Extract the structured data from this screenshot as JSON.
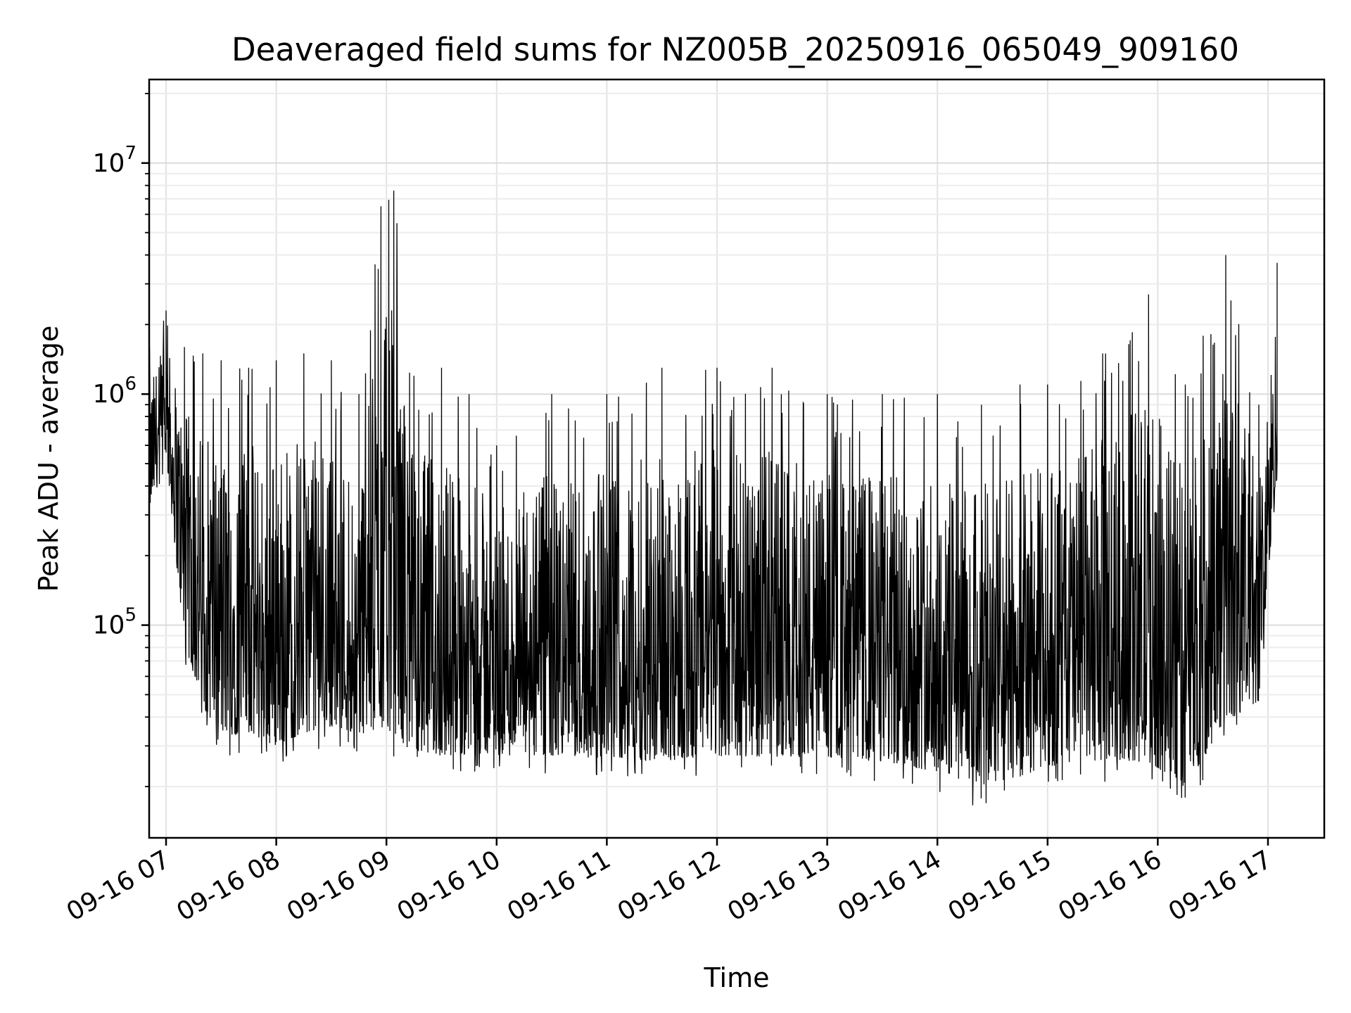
{
  "chart_data": {
    "type": "line",
    "title": "Deaveraged field sums for NZ005B_20250916_065049_909160",
    "xlabel": "Time",
    "ylabel": "Peak ADU - average",
    "yscale": "log",
    "ylim": [
      12000,
      23000000
    ],
    "xlim": [
      "09-16 06:51",
      "09-16 17:05"
    ],
    "x_ticks": [
      "09-16 07",
      "09-16 08",
      "09-16 09",
      "09-16 10",
      "09-16 11",
      "09-16 12",
      "09-16 13",
      "09-16 14",
      "09-16 15",
      "09-16 16",
      "09-16 17"
    ],
    "y_ticks": [
      {
        "base": "10",
        "exp": "5",
        "value": 100000
      },
      {
        "base": "10",
        "exp": "6",
        "value": 1000000
      },
      {
        "base": "10",
        "exp": "7",
        "value": 10000000
      }
    ],
    "grid": true,
    "line_color": "#000000",
    "series": [
      {
        "values_envelope": [
          {
            "x": "09-16 06:51",
            "low": 280000,
            "high": 1600000
          },
          {
            "x": "09-16 07:00",
            "low": 500000,
            "high": 2300000
          },
          {
            "x": "09-16 07:10",
            "low": 70000,
            "high": 1600000
          },
          {
            "x": "09-16 07:20",
            "low": 37000,
            "high": 1500000
          },
          {
            "x": "09-16 07:30",
            "low": 27000,
            "high": 1400000
          },
          {
            "x": "09-16 07:45",
            "low": 28000,
            "high": 1300000
          },
          {
            "x": "09-16 08:00",
            "low": 24000,
            "high": 1400000
          },
          {
            "x": "09-16 08:15",
            "low": 28000,
            "high": 1500000
          },
          {
            "x": "09-16 08:30",
            "low": 30000,
            "high": 1400000
          },
          {
            "x": "09-16 08:45",
            "low": 28000,
            "high": 1000000
          },
          {
            "x": "09-16 08:57",
            "low": 27000,
            "high": 6500000
          },
          {
            "x": "09-16 09:04",
            "low": 26000,
            "high": 7600000
          },
          {
            "x": "09-16 09:15",
            "low": 22000,
            "high": 1200000
          },
          {
            "x": "09-16 09:30",
            "low": 22000,
            "high": 1300000
          },
          {
            "x": "09-16 09:45",
            "low": 23000,
            "high": 1000000
          },
          {
            "x": "09-16 10:00",
            "low": 23000,
            "high": 600000
          },
          {
            "x": "09-16 10:30",
            "low": 22000,
            "high": 1000000
          },
          {
            "x": "09-16 11:00",
            "low": 22000,
            "high": 1000000
          },
          {
            "x": "09-16 11:30",
            "low": 21000,
            "high": 1300000
          },
          {
            "x": "09-16 12:00",
            "low": 22000,
            "high": 1300000
          },
          {
            "x": "09-16 12:30",
            "low": 22000,
            "high": 1300000
          },
          {
            "x": "09-16 13:00",
            "low": 22000,
            "high": 1000000
          },
          {
            "x": "09-16 13:30",
            "low": 21000,
            "high": 1000000
          },
          {
            "x": "09-16 14:00",
            "low": 19000,
            "high": 1000000
          },
          {
            "x": "09-16 14:24",
            "low": 16000,
            "high": 900000
          },
          {
            "x": "09-16 14:45",
            "low": 18000,
            "high": 1100000
          },
          {
            "x": "09-16 15:00",
            "low": 20000,
            "high": 1100000
          },
          {
            "x": "09-16 15:30",
            "low": 21000,
            "high": 1500000
          },
          {
            "x": "09-16 15:55",
            "low": 20000,
            "high": 2700000
          },
          {
            "x": "09-16 16:15",
            "low": 16000,
            "high": 1100000
          },
          {
            "x": "09-16 16:37",
            "low": 30000,
            "high": 4000000
          },
          {
            "x": "09-16 16:55",
            "low": 40000,
            "high": 900000
          },
          {
            "x": "09-16 17:05",
            "low": 400000,
            "high": 3700000
          }
        ]
      }
    ]
  }
}
